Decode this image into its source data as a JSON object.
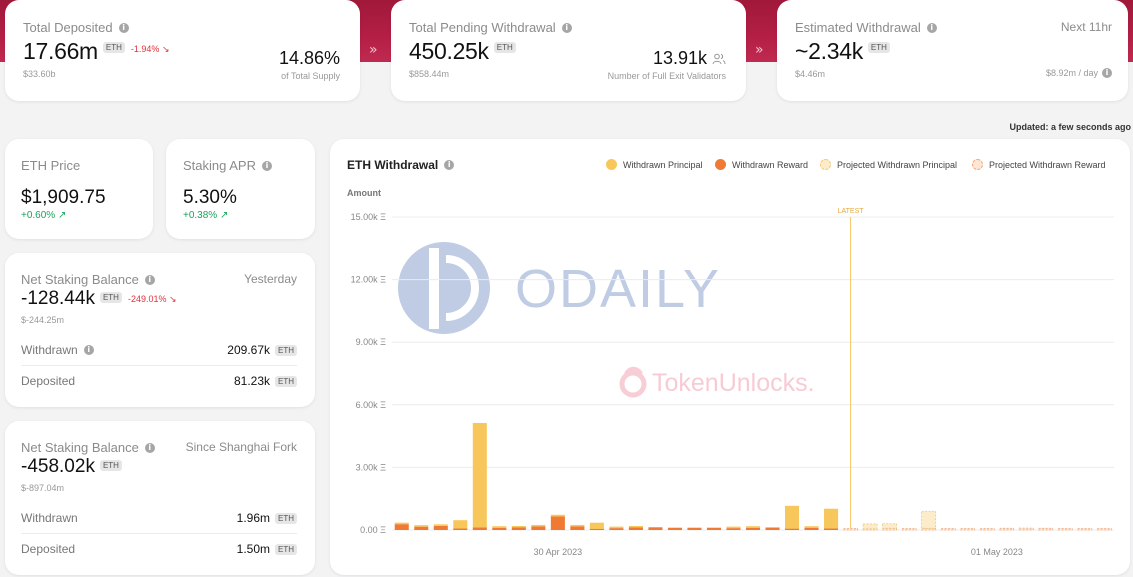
{
  "colors": {
    "principal": "#f8c75b",
    "reward": "#f07a34",
    "proj_principal_fill": "#fdecc9",
    "proj_principal_stroke": "#f3c67a",
    "proj_reward_stroke": "#f0a778",
    "latest": "#f7c66a",
    "negative": "#e0303c",
    "positive": "#1aa45a",
    "band": "#b01f43"
  },
  "total_deposited": {
    "label": "Total Deposited",
    "value": "17.66m",
    "unit": "ETH",
    "change": "-1.94% ↘",
    "usd": "$33.60b",
    "pct": "14.86%",
    "pct_label": "of Total Supply"
  },
  "pending": {
    "label": "Total Pending Withdrawal",
    "value": "450.25k",
    "unit": "ETH",
    "usd": "$858.44m",
    "validators": "13.91k",
    "validators_label": "Number of Full Exit Validators",
    "validators_icon": "users-icon"
  },
  "estimated": {
    "label": "Estimated Withdrawal",
    "next": "Next 11hr",
    "value": "~2.34k",
    "unit": "ETH",
    "usd": "$4.46m",
    "rate": "$8.92m / day"
  },
  "updated": "Updated: a few seconds ago",
  "eth_price": {
    "label": "ETH Price",
    "value": "$1,909.75",
    "change": "+0.60% ↗"
  },
  "staking_apr": {
    "label": "Staking APR",
    "value": "5.30%",
    "change": "+0.38% ↗"
  },
  "net_yesterday": {
    "label": "Net Staking Balance",
    "period": "Yesterday",
    "value": "-128.44k",
    "unit": "ETH",
    "change": "-249.01% ↘",
    "usd": "$-244.25m",
    "withdrawn_label": "Withdrawn",
    "withdrawn": "209.67k",
    "deposited_label": "Deposited",
    "deposited": "81.23k"
  },
  "net_shanghai": {
    "label": "Net Staking Balance",
    "period": "Since Shanghai Fork",
    "value": "-458.02k",
    "unit": "ETH",
    "usd": "$-897.04m",
    "withdrawn_label": "Withdrawn",
    "withdrawn": "1.96m",
    "deposited_label": "Deposited",
    "deposited": "1.50m"
  },
  "watermark": {
    "odaily": "ODAILY",
    "tokenunlocks": "TokenUnlocks."
  },
  "chart_data": {
    "type": "bar",
    "title": "ETH Withdrawal",
    "ylabel": "Amount",
    "ylim": [
      0,
      15000
    ],
    "yticks": [
      "0.00 Ξ",
      "3.00k Ξ",
      "6.00k Ξ",
      "9.00k Ξ",
      "12.00k Ξ",
      "15.00k Ξ"
    ],
    "xticks": [
      "30 Apr 2023",
      "01 May 2023"
    ],
    "latest_label": "LATEST",
    "legend": [
      "Withdrawn Principal",
      "Withdrawn Reward",
      "Projected Withdrawn Principal",
      "Projected Withdrawn Reward"
    ],
    "grid": true,
    "series": [
      {
        "name": "Withdrawn Principal",
        "values": [
          50,
          20,
          40,
          400,
          5000,
          20,
          20,
          30,
          80,
          20,
          300,
          20,
          20,
          0,
          0,
          0,
          0,
          50,
          20,
          0,
          1100,
          20,
          950,
          0,
          0,
          0,
          0,
          0,
          0,
          0,
          0,
          0,
          0,
          0,
          0,
          0,
          0
        ]
      },
      {
        "name": "Withdrawn Reward",
        "values": [
          280,
          160,
          200,
          70,
          130,
          110,
          120,
          170,
          650,
          170,
          50,
          90,
          120,
          130,
          110,
          110,
          110,
          90,
          110,
          120,
          60,
          110,
          70,
          0,
          0,
          0,
          0,
          0,
          0,
          0,
          0,
          0,
          0,
          0,
          0,
          0,
          0
        ]
      },
      {
        "name": "Projected Withdrawn Principal",
        "values": [
          0,
          0,
          0,
          0,
          0,
          0,
          0,
          0,
          0,
          0,
          0,
          0,
          0,
          0,
          0,
          0,
          0,
          0,
          0,
          0,
          0,
          0,
          0,
          0,
          230,
          220,
          0,
          820,
          0,
          0,
          0,
          0,
          0,
          0,
          0,
          0,
          0
        ]
      },
      {
        "name": "Projected Withdrawn Reward",
        "values": [
          0,
          0,
          0,
          0,
          0,
          0,
          0,
          0,
          0,
          0,
          0,
          0,
          0,
          0,
          0,
          0,
          0,
          0,
          0,
          0,
          0,
          0,
          0,
          20,
          60,
          80,
          70,
          80,
          70,
          70,
          70,
          80,
          90,
          80,
          70,
          60,
          60
        ]
      }
    ]
  }
}
